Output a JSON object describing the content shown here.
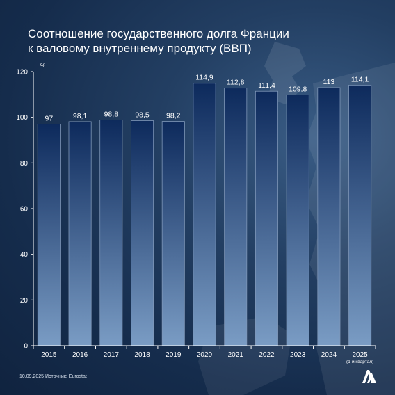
{
  "title_line1": "Соотношение государственного долга Франции",
  "title_line2": "к валовому внутреннему продукту (ВВП)",
  "footer": {
    "date": "10.09.2025",
    "source": "Источник: Eurostat"
  },
  "logo": {
    "icon": "aa-agency-logo"
  },
  "colors": {
    "background": "#1a3355",
    "bar_top": "#0d2a5c",
    "bar_bottom": "#7a9cc4",
    "text": "#ffffff"
  },
  "chart_data": {
    "type": "bar",
    "title": "Соотношение государственного долга Франции к валовому внутреннему продукту (ВВП)",
    "ylabel": "%",
    "ylim": [
      0,
      120
    ],
    "yticks": [
      0,
      20,
      40,
      60,
      80,
      100,
      120
    ],
    "grid": false,
    "categories": [
      "2015",
      "2016",
      "2017",
      "2018",
      "2019",
      "2020",
      "2021",
      "2022",
      "2023",
      "2024",
      "2025"
    ],
    "category_notes": [
      "",
      "",
      "",
      "",
      "",
      "",
      "",
      "",
      "",
      "",
      "(1-й квартал)"
    ],
    "values": [
      97,
      98.1,
      98.8,
      98.5,
      98.2,
      114.9,
      112.8,
      111.4,
      109.8,
      113,
      114.1
    ],
    "value_labels": [
      "97",
      "98,1",
      "98,8",
      "98,5",
      "98,2",
      "114,9",
      "112,8",
      "111,4",
      "109,8",
      "113",
      "114,1"
    ]
  }
}
